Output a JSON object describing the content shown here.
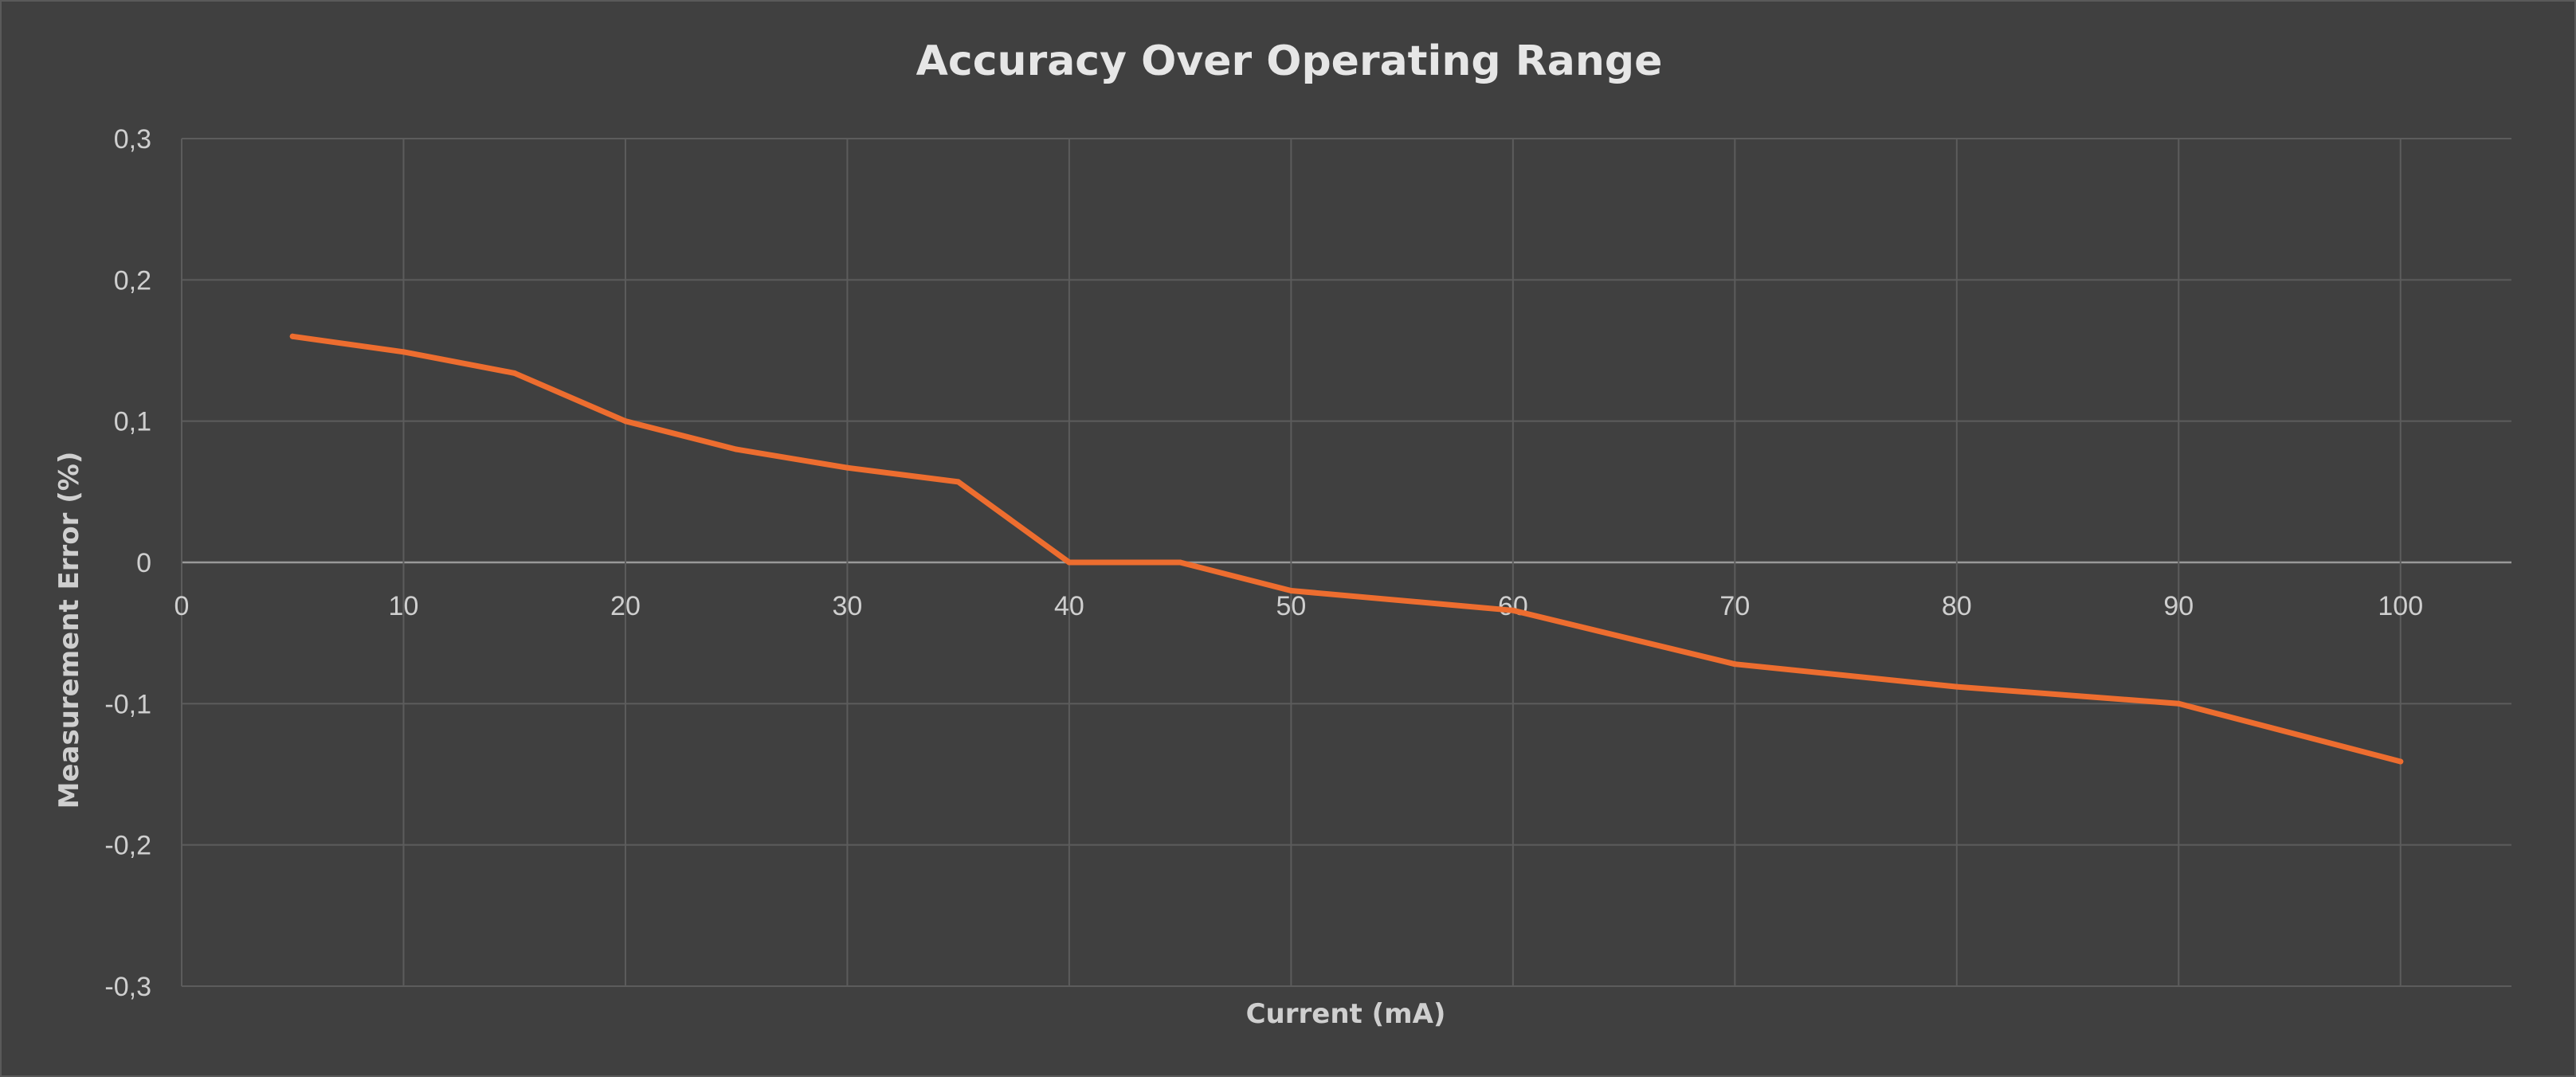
{
  "chart_data": {
    "type": "line",
    "title": "Accuracy Over Operating Range",
    "xlabel": "Current (mA)",
    "ylabel": "Measurement Error (%)",
    "xlim": [
      0,
      105
    ],
    "ylim": [
      -0.3,
      0.3
    ],
    "x_ticks": [
      0,
      10,
      20,
      30,
      40,
      50,
      60,
      70,
      80,
      90,
      100
    ],
    "x_tick_labels": [
      "0",
      "10",
      "20",
      "30",
      "40",
      "50",
      "60",
      "70",
      "80",
      "90",
      "100"
    ],
    "y_ticks": [
      0.3,
      0.2,
      0.1,
      0,
      -0.1,
      -0.2,
      -0.3
    ],
    "y_tick_labels": [
      "0,3",
      "0,2",
      "0,1",
      "0",
      "-0,1",
      "-0,2",
      "-0,3"
    ],
    "grid": true,
    "legend": "none",
    "series": [
      {
        "color": "#ed6d2f",
        "x": [
          5,
          10,
          15,
          20,
          25,
          30,
          35,
          40,
          45,
          50,
          60,
          70,
          80,
          90,
          100
        ],
        "y": [
          0.16,
          0.149,
          0.134,
          0.1,
          0.08,
          0.067,
          0.057,
          0,
          0,
          -0.02,
          -0.034,
          -0.072,
          -0.088,
          -0.1,
          -0.141
        ]
      }
    ]
  }
}
